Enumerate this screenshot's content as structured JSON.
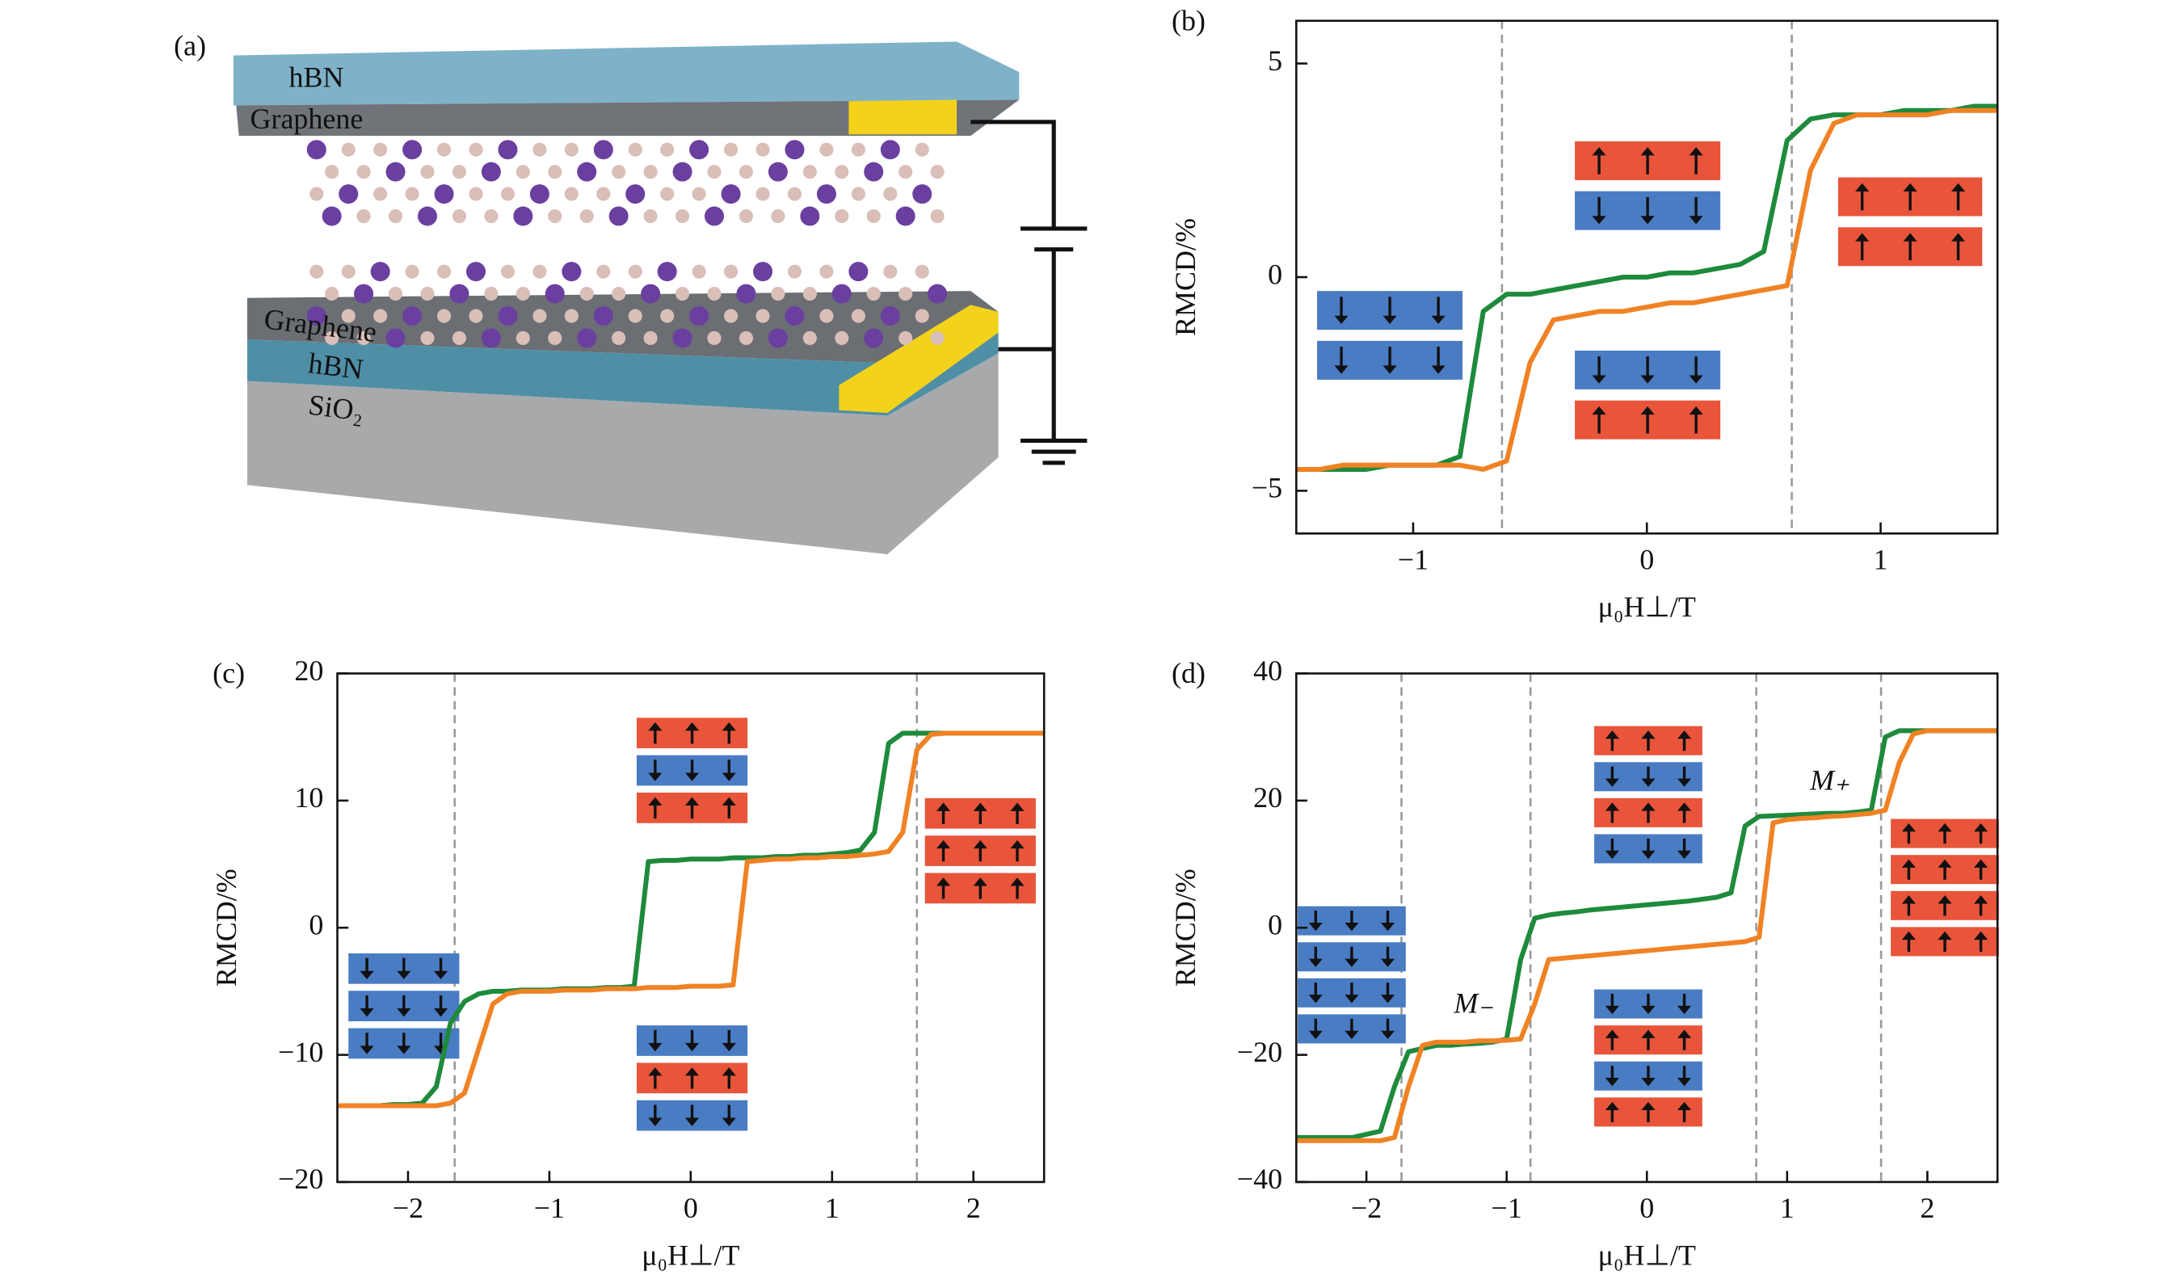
{
  "diagram": {
    "panel_label": "(a)",
    "layers": [
      "hBN",
      "Graphene",
      "Graphene",
      "hBN",
      "SiO₂"
    ]
  },
  "chart_data": [
    {
      "type": "line",
      "panel_label": "(b)",
      "xlabel": "μ₀H⊥/T",
      "ylabel": "RMCD/%",
      "xlim": [
        -1.5,
        1.5
      ],
      "ylim": [
        -6,
        6
      ],
      "xticks": [
        {
          "value": -1,
          "label": "−1"
        },
        0,
        1
      ],
      "yticks": [
        {
          "value": -5,
          "label": "−5"
        },
        0,
        5
      ],
      "vlines": [
        -0.62,
        0.62
      ],
      "x": [
        -1.5,
        -1.4,
        -1.3,
        -1.2,
        -1.1,
        -1.0,
        -0.9,
        -0.8,
        -0.7,
        -0.6,
        -0.5,
        -0.4,
        -0.3,
        -0.2,
        -0.1,
        0,
        0.1,
        0.2,
        0.3,
        0.4,
        0.5,
        0.6,
        0.7,
        0.8,
        0.9,
        1.0,
        1.1,
        1.2,
        1.3,
        1.4,
        1.5
      ],
      "series": [
        {
          "color": "#1e8a3c",
          "values": [
            -4.5,
            -4.5,
            -4.5,
            -4.5,
            -4.4,
            -4.4,
            -4.4,
            -4.2,
            -0.8,
            -0.4,
            -0.4,
            -0.3,
            -0.2,
            -0.1,
            0,
            0,
            0.1,
            0.1,
            0.2,
            0.3,
            0.6,
            3.2,
            3.7,
            3.8,
            3.8,
            3.8,
            3.9,
            3.9,
            3.9,
            4.0,
            4.0
          ]
        },
        {
          "color": "#f08224",
          "values": [
            -4.5,
            -4.5,
            -4.4,
            -4.4,
            -4.4,
            -4.4,
            -4.4,
            -4.4,
            -4.5,
            -4.3,
            -2.0,
            -1.0,
            -0.9,
            -0.8,
            -0.8,
            -0.7,
            -0.6,
            -0.6,
            -0.5,
            -0.4,
            -0.3,
            -0.2,
            2.5,
            3.6,
            3.8,
            3.8,
            3.8,
            3.8,
            3.9,
            3.9,
            3.9
          ]
        }
      ]
    },
    {
      "type": "line",
      "panel_label": "(c)",
      "xlabel": "μ₀H⊥/T",
      "ylabel": "RMCD/%",
      "xlim": [
        -2.5,
        2.5
      ],
      "ylim": [
        -20,
        20
      ],
      "xticks": [
        {
          "value": -2,
          "label": "−2"
        },
        {
          "value": -1,
          "label": "−1"
        },
        0,
        1,
        2
      ],
      "yticks": [
        {
          "value": -20,
          "label": "−20"
        },
        {
          "value": -10,
          "label": "−10"
        },
        0,
        10,
        20
      ],
      "vlines": [
        -1.67,
        1.6
      ],
      "x": [
        -2.5,
        -2.4,
        -2.3,
        -2.2,
        -2.1,
        -2.0,
        -1.9,
        -1.8,
        -1.7,
        -1.6,
        -1.5,
        -1.4,
        -1.3,
        -1.2,
        -1.1,
        -1.0,
        -0.9,
        -0.8,
        -0.7,
        -0.6,
        -0.5,
        -0.4,
        -0.3,
        -0.2,
        -0.1,
        0,
        0.1,
        0.2,
        0.3,
        0.4,
        0.5,
        0.6,
        0.7,
        0.8,
        0.9,
        1.0,
        1.1,
        1.2,
        1.3,
        1.4,
        1.5,
        1.6,
        1.7,
        1.8,
        1.9,
        2.0,
        2.1,
        2.2,
        2.3,
        2.4,
        2.5
      ],
      "series": [
        {
          "color": "#1e8a3c",
          "values": [
            -14,
            -14,
            -14,
            -14,
            -13.9,
            -13.9,
            -13.8,
            -12.5,
            -7.5,
            -5.8,
            -5.2,
            -5.0,
            -5.0,
            -4.9,
            -4.9,
            -4.9,
            -4.8,
            -4.8,
            -4.8,
            -4.7,
            -4.7,
            -4.6,
            5.2,
            5.3,
            5.3,
            5.4,
            5.4,
            5.4,
            5.5,
            5.5,
            5.5,
            5.6,
            5.6,
            5.7,
            5.7,
            5.8,
            5.9,
            6.1,
            7.5,
            14.5,
            15.3,
            15.3,
            15.3,
            15.3,
            15.3,
            15.3,
            15.3,
            15.3,
            15.3,
            15.3,
            15.3
          ]
        },
        {
          "color": "#f08224",
          "values": [
            -14,
            -14,
            -14,
            -14,
            -14,
            -14,
            -14,
            -14,
            -13.8,
            -13.0,
            -9.5,
            -6.0,
            -5.2,
            -5.0,
            -5.0,
            -5.0,
            -4.9,
            -4.9,
            -4.9,
            -4.8,
            -4.8,
            -4.8,
            -4.7,
            -4.7,
            -4.7,
            -4.6,
            -4.6,
            -4.6,
            -4.5,
            5.2,
            5.3,
            5.4,
            5.4,
            5.5,
            5.5,
            5.6,
            5.6,
            5.7,
            5.8,
            6.0,
            7.5,
            14.0,
            15.2,
            15.3,
            15.3,
            15.3,
            15.3,
            15.3,
            15.3,
            15.3,
            15.3
          ]
        }
      ]
    },
    {
      "type": "line",
      "panel_label": "(d)",
      "xlabel": "μ₀H⊥/T",
      "ylabel": "RMCD/%",
      "xlim": [
        -2.5,
        2.5
      ],
      "ylim": [
        -40,
        40
      ],
      "xticks": [
        {
          "value": -2,
          "label": "−2"
        },
        {
          "value": -1,
          "label": "−1"
        },
        0,
        1,
        2
      ],
      "yticks": [
        {
          "value": -40,
          "label": "−40"
        },
        {
          "value": -20,
          "label": "−20"
        },
        0,
        20,
        40
      ],
      "vlines": [
        -1.75,
        -0.83,
        0.78,
        1.67
      ],
      "annotations": [
        "M₋",
        "M₊"
      ],
      "x": [
        -2.5,
        -2.4,
        -2.3,
        -2.2,
        -2.1,
        -2.0,
        -1.9,
        -1.8,
        -1.7,
        -1.6,
        -1.5,
        -1.4,
        -1.3,
        -1.2,
        -1.1,
        -1.0,
        -0.9,
        -0.8,
        -0.7,
        -0.6,
        -0.5,
        -0.4,
        -0.3,
        -0.2,
        -0.1,
        0,
        0.1,
        0.2,
        0.3,
        0.4,
        0.5,
        0.6,
        0.7,
        0.8,
        0.9,
        1.0,
        1.1,
        1.2,
        1.3,
        1.4,
        1.5,
        1.6,
        1.7,
        1.8,
        1.9,
        2.0,
        2.1,
        2.2,
        2.3,
        2.4,
        2.5
      ],
      "series": [
        {
          "color": "#1e8a3c",
          "values": [
            -33,
            -33,
            -33,
            -33,
            -33,
            -32.5,
            -32,
            -25,
            -19.5,
            -19,
            -18.5,
            -18.5,
            -18.3,
            -18.2,
            -18,
            -17.5,
            -5,
            1.5,
            2,
            2.3,
            2.5,
            2.8,
            3,
            3.2,
            3.4,
            3.6,
            3.8,
            4,
            4.2,
            4.5,
            4.8,
            5.5,
            16,
            17.5,
            17.6,
            17.7,
            17.8,
            17.9,
            18,
            18,
            18.2,
            18.5,
            30,
            31,
            31,
            31,
            31,
            31,
            31,
            31,
            31
          ]
        },
        {
          "color": "#f08224",
          "values": [
            -33.5,
            -33.5,
            -33.5,
            -33.5,
            -33.5,
            -33.5,
            -33.5,
            -33,
            -25,
            -18.5,
            -18,
            -18,
            -18,
            -17.8,
            -17.8,
            -17.7,
            -17.5,
            -12,
            -5,
            -4.8,
            -4.6,
            -4.4,
            -4.2,
            -4,
            -3.8,
            -3.6,
            -3.4,
            -3.2,
            -3,
            -2.8,
            -2.6,
            -2.4,
            -2.2,
            -1.5,
            16.5,
            17,
            17.2,
            17.3,
            17.5,
            17.6,
            17.8,
            18,
            18.5,
            26,
            30.5,
            31,
            31,
            31,
            31,
            31,
            31
          ]
        }
      ]
    }
  ]
}
